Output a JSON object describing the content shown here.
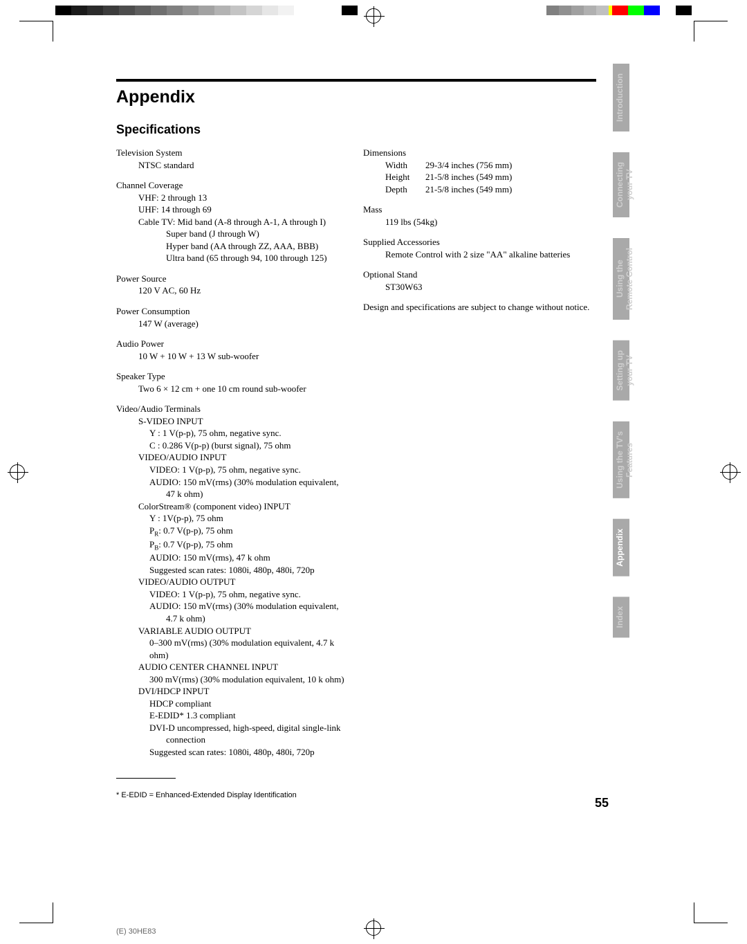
{
  "print": {
    "grayscale_bar": [
      "#000000",
      "#1a1a1a",
      "#2b2b2b",
      "#3c3c3c",
      "#4d4d4d",
      "#5e5e5e",
      "#6f6f6f",
      "#808080",
      "#919191",
      "#a2a2a2",
      "#b3b3b3",
      "#c4c4c4",
      "#d5d5d5",
      "#e6e6e6",
      "#f2f2f2",
      "#ffffff",
      "#ffffff",
      "#ffffff",
      "#000000"
    ],
    "color_bar": [
      "#00ffff",
      "#ff00ff",
      "#ffff00",
      "#ff0000",
      "#00ff00",
      "#0000ff",
      "#ffffff",
      "#000000"
    ],
    "gray2": [
      "#808080",
      "#909090",
      "#a0a0a0",
      "#b0b0b0",
      "#c0c0c0"
    ]
  },
  "header": {
    "title": "Appendix",
    "subtitle": "Specifications"
  },
  "leftCol": {
    "tvSystem": {
      "label": "Television System",
      "value": "NTSC standard"
    },
    "channelCoverage": {
      "label": "Channel Coverage",
      "vhf": "VHF: 2 through 13",
      "uhf": "UHF: 14 through 69",
      "cableLabel": "Cable TV:",
      "mid": "Mid band (A-8 through A-1, A through I)",
      "super": "Super band (J through W)",
      "hyper": "Hyper band (AA through ZZ, AAA, BBB)",
      "ultra": "Ultra band (65 through 94, 100 through 125)"
    },
    "powerSource": {
      "label": "Power Source",
      "value": "120 V AC, 60 Hz"
    },
    "powerConsumption": {
      "label": "Power Consumption",
      "value": "147 W (average)"
    },
    "audioPower": {
      "label": "Audio Power",
      "value": "10 W + 10 W + 13 W sub-woofer"
    },
    "speakerType": {
      "label": "Speaker Type",
      "value": "Two 6 × 12 cm + one 10 cm round sub-woofer"
    },
    "terminals": {
      "label": "Video/Audio Terminals",
      "svideo": {
        "label": "S-VIDEO INPUT",
        "y": "Y : 1 V(p-p), 75 ohm, negative sync.",
        "c": "C : 0.286 V(p-p) (burst signal), 75 ohm"
      },
      "vaInput": {
        "label": "VIDEO/AUDIO INPUT",
        "video": "VIDEO: 1 V(p-p), 75 ohm, negative sync.",
        "audio1": "AUDIO: 150 mV(rms) (30% modulation equivalent,",
        "audio2": "47 k ohm)"
      },
      "colorstream": {
        "label": "ColorStream® (component video) INPUT",
        "y": "Y  : 1V(p-p), 75 ohm",
        "pr": "PR: 0.7 V(p-p), 75 ohm",
        "pb": "PB: 0.7 V(p-p), 75 ohm",
        "audio": "AUDIO: 150 mV(rms), 47 k ohm",
        "scan": "Suggested scan rates: 1080i, 480p, 480i, 720p"
      },
      "vaOutput": {
        "label": "VIDEO/AUDIO OUTPUT",
        "video": "VIDEO: 1 V(p-p), 75 ohm, negative sync.",
        "audio1": "AUDIO: 150 mV(rms) (30% modulation equivalent,",
        "audio2": "4.7 k ohm)"
      },
      "varAudio": {
        "label": "VARIABLE AUDIO OUTPUT",
        "value": "0–300 mV(rms) (30% modulation equivalent, 4.7 k ohm)"
      },
      "centerChannel": {
        "label": "AUDIO CENTER CHANNEL INPUT",
        "value": "300 mV(rms) (30% modulation equivalent, 10 k ohm)"
      },
      "dvi": {
        "label": "DVI/HDCP INPUT",
        "hdcp": "HDCP compliant",
        "edid": "E-EDID* 1.3 compliant",
        "dvid1": "DVI-D uncompressed, high-speed, digital single-link",
        "dvid2": "connection",
        "scan": "Suggested scan rates: 1080i, 480p, 480i, 720p"
      }
    }
  },
  "rightCol": {
    "dimensions": {
      "label": "Dimensions",
      "width": {
        "label": "Width",
        "value": "29-3/4 inches (756 mm)"
      },
      "height": {
        "label": "Height",
        "value": "21-5/8 inches (549 mm)"
      },
      "depth": {
        "label": "Depth",
        "value": "21-5/8 inches (549 mm)"
      }
    },
    "mass": {
      "label": "Mass",
      "value": "119 lbs (54kg)"
    },
    "accessories": {
      "label": "Supplied Accessories",
      "value": "Remote Control with 2 size \"AA\" alkaline batteries"
    },
    "stand": {
      "label": "Optional Stand",
      "value": "ST30W63"
    },
    "disclaimer": "Design and specifications are subject to change without notice."
  },
  "footnote": "* E-EDID = Enhanced-Extended Display Identification",
  "pageNumber": "55",
  "footerCode": "(E) 30HE83",
  "tabs": {
    "intro": "Introduction",
    "connecting": "Connecting\nyour TV",
    "remote": "Using the\nRemote Control",
    "setting": "Setting up\nyour TV",
    "features": "Using the TV's\nFeatures",
    "appendix": "Appendix",
    "index": "Index"
  },
  "style": {
    "tab_bg": "#a9a9a9",
    "tab_inactive_color": "#cfcfcf",
    "tab_active_color": "#ffffff"
  }
}
